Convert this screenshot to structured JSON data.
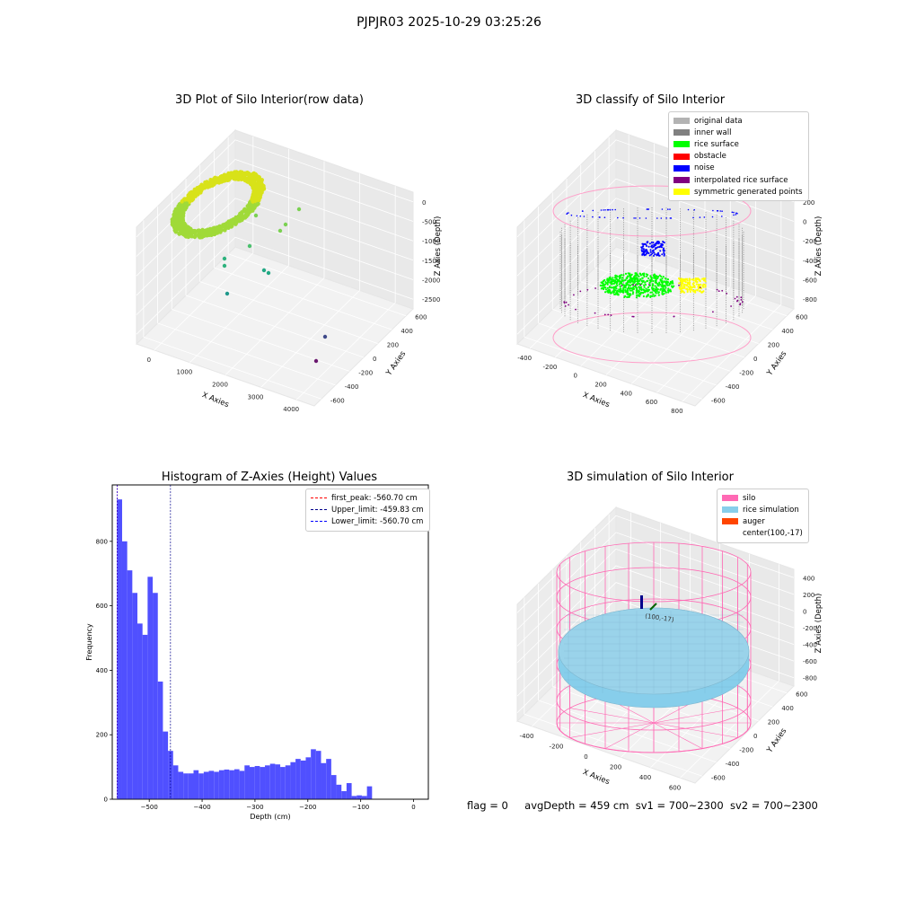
{
  "figure": {
    "suptitle": "PJPJR03 2025-10-29 03:25:26",
    "status": {
      "flag": "flag = 0",
      "avg_depth": "avgDepth = 459 cm",
      "sv1": "sv1 = 700~2300",
      "sv2": "sv2 = 700~2300"
    }
  },
  "chart_data": [
    {
      "type": "scatter",
      "projection": "3d",
      "title": "3D Plot of Silo Interior(row data)",
      "xlabel": "X Axies",
      "ylabel": "Y Axies",
      "zlabel": "Z Axies (Depth)",
      "xticks": [
        "0",
        "1000",
        "2000",
        "3000",
        "4000"
      ],
      "yticks": [
        "-600",
        "-400",
        "-200",
        "0",
        "200",
        "400",
        "600"
      ],
      "zticks": [
        "0",
        "-500",
        "-1000",
        "-1500",
        "-2000",
        "-2500"
      ],
      "colormap": "viridis",
      "grid": true
    },
    {
      "type": "scatter",
      "projection": "3d",
      "title": "3D classify of Silo Interior",
      "xlabel": "X Axies",
      "ylabel": "Y Axies",
      "zlabel": "Z Axies (Depth)",
      "xticks": [
        "-400",
        "-200",
        "0",
        "200",
        "400",
        "600",
        "800"
      ],
      "yticks": [
        "-600",
        "-400",
        "-200",
        "0",
        "200",
        "400",
        "600"
      ],
      "zticks": [
        "200",
        "0",
        "-200",
        "-400",
        "-600",
        "-800"
      ],
      "legend_position": "top-right",
      "legend": [
        {
          "label": "original data",
          "color": "#b3b3b3"
        },
        {
          "label": "inner wall",
          "color": "#808080"
        },
        {
          "label": "rice surface",
          "color": "#00ff00"
        },
        {
          "label": "obstacle",
          "color": "#ff0000"
        },
        {
          "label": "noise",
          "color": "#0000ff"
        },
        {
          "label": "interpolated rice surface",
          "color": "#800080"
        },
        {
          "label": "symmetric generated points",
          "color": "#ffff00"
        }
      ],
      "grid": true
    },
    {
      "type": "bar",
      "title": "Histogram of Z-Axies (Height) Values",
      "xlabel": "Depth (cm)",
      "ylabel": "Frequency",
      "xlim": [
        -570,
        28
      ],
      "ylim": [
        0,
        975
      ],
      "xticks": [
        -500,
        -400,
        -300,
        -200,
        -100,
        0
      ],
      "yticks": [
        0,
        200,
        400,
        600,
        800
      ],
      "bar_color": "#5050ff",
      "bin_start": -561,
      "bin_width": 9.65,
      "values": [
        930,
        800,
        710,
        640,
        545,
        510,
        690,
        640,
        365,
        210,
        150,
        105,
        85,
        80,
        80,
        90,
        80,
        85,
        88,
        85,
        90,
        92,
        90,
        93,
        88,
        105,
        100,
        103,
        100,
        105,
        110,
        108,
        100,
        105,
        115,
        125,
        120,
        130,
        155,
        150,
        112,
        125,
        75,
        45,
        25,
        50,
        10,
        12,
        10,
        40
      ],
      "lines": [
        {
          "label": "first_peak: -560.70 cm",
          "x": -560.7,
          "color": "#ff0000"
        },
        {
          "label": "Upper_limit: -459.83 cm",
          "x": -459.83,
          "color": "#00008b"
        },
        {
          "label": "Lower_limit: -560.70 cm",
          "x": -560.7,
          "color": "#0000ff"
        }
      ],
      "legend_position": "top-right"
    },
    {
      "type": "surface",
      "projection": "3d",
      "title": "3D simulation of Silo Interior",
      "xlabel": "X Axies",
      "ylabel": "Y Axies",
      "zlabel": "Z Axies (Depth)",
      "xticks": [
        "-400",
        "-200",
        "0",
        "200",
        "400",
        "600"
      ],
      "yticks": [
        "-600",
        "-400",
        "-200",
        "0",
        "200",
        "400",
        "600"
      ],
      "zticks": [
        "400",
        "200",
        "0",
        "-200",
        "-400",
        "-600",
        "-800"
      ],
      "annotation": "(100,-17)",
      "legend_position": "top-right",
      "legend": [
        {
          "label": "silo",
          "color": "#ff69b4"
        },
        {
          "label": "rice simulation",
          "color": "#87ceeb"
        },
        {
          "label": "auger",
          "color": "#ff4500"
        },
        {
          "label": "center(100,-17)",
          "color": ""
        }
      ],
      "grid": true
    }
  ]
}
